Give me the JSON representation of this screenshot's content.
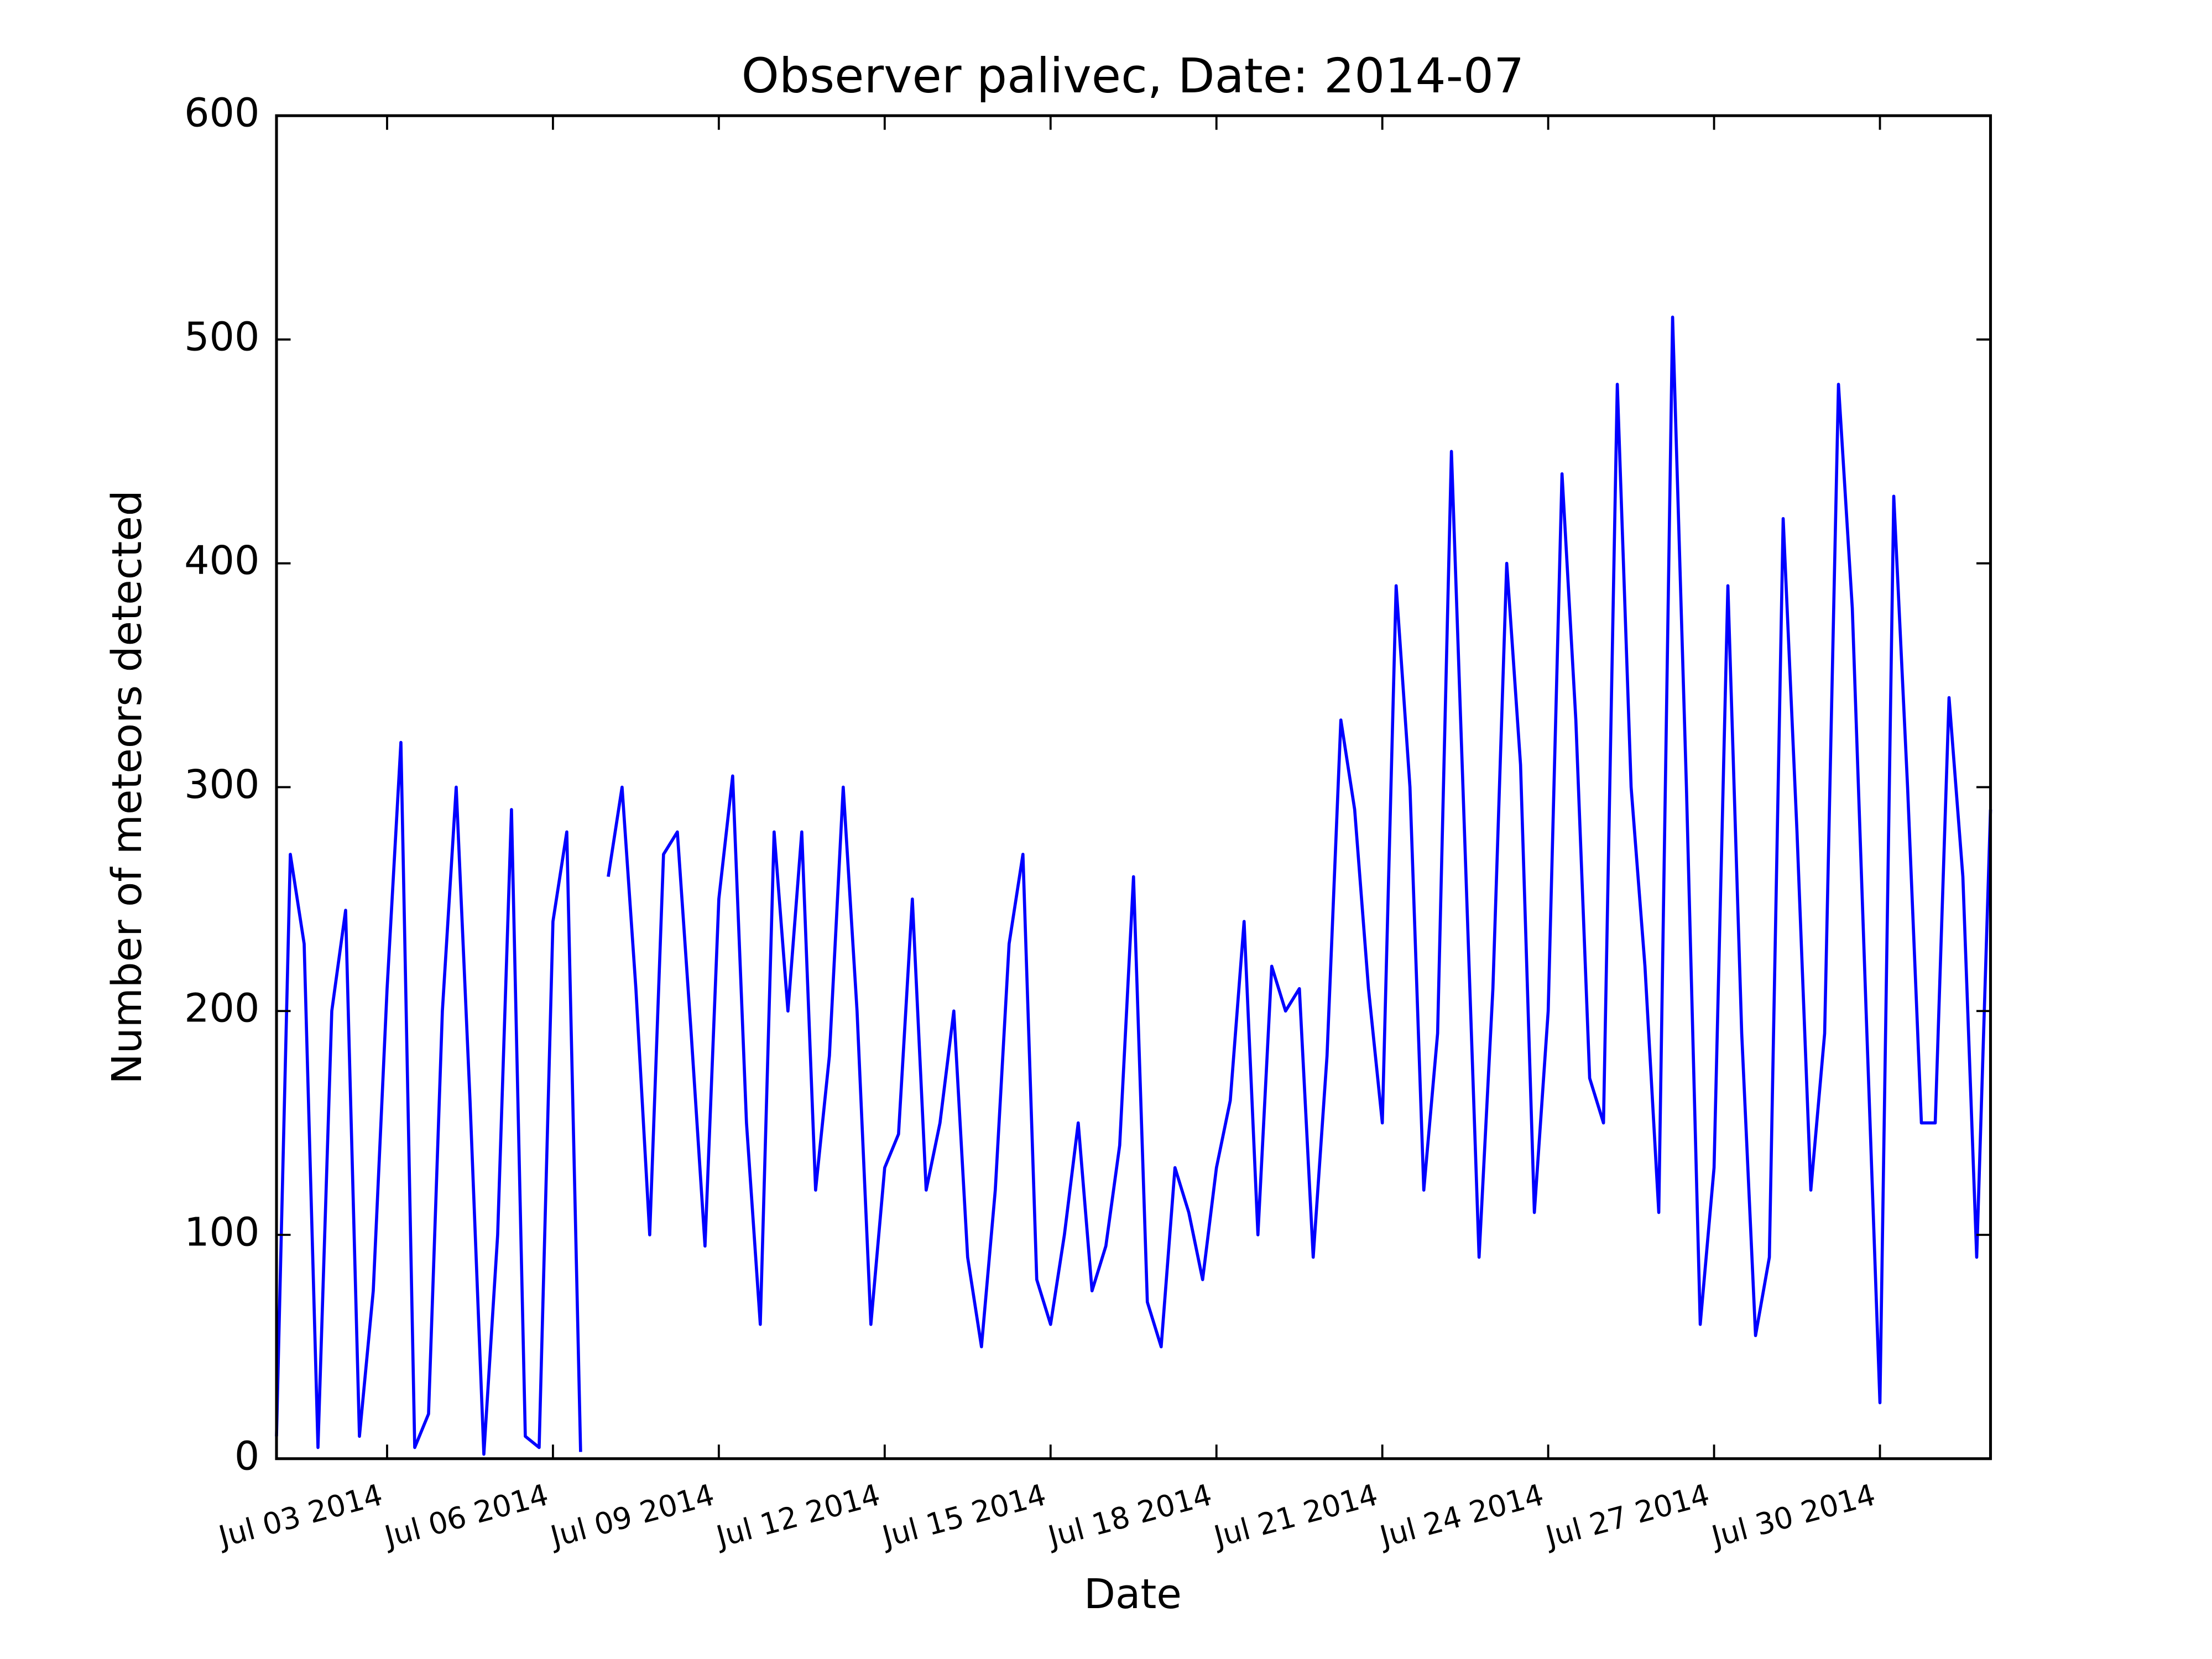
{
  "chart_data": {
    "type": "line",
    "title": "Observer palivec, Date: 2014-07",
    "xlabel": "Date",
    "ylabel": "Number of meteors detected",
    "color": "#0000ff",
    "xlim": [
      1,
      32
    ],
    "ylim": [
      0,
      600
    ],
    "yticks": [
      0,
      100,
      200,
      300,
      400,
      500,
      600
    ],
    "xticks": [
      {
        "value": 3,
        "label": "Jul 03 2014"
      },
      {
        "value": 6,
        "label": "Jul 06 2014"
      },
      {
        "value": 9,
        "label": "Jul 09 2014"
      },
      {
        "value": 12,
        "label": "Jul 12 2014"
      },
      {
        "value": 15,
        "label": "Jul 15 2014"
      },
      {
        "value": 18,
        "label": "Jul 18 2014"
      },
      {
        "value": 21,
        "label": "Jul 21 2014"
      },
      {
        "value": 24,
        "label": "Jul 24 2014"
      },
      {
        "value": 27,
        "label": "Jul 27 2014"
      },
      {
        "value": 30,
        "label": "Jul 30 2014"
      }
    ],
    "x": [
      1,
      1.25,
      1.5,
      1.75,
      2,
      2.25,
      2.5,
      2.75,
      3,
      3.25,
      3.5,
      3.75,
      4,
      4.25,
      4.5,
      4.75,
      5,
      5.25,
      5.5,
      5.75,
      6,
      6.25,
      6.5,
      6.75,
      7,
      7.25,
      7.5,
      7.75,
      8,
      8.25,
      8.5,
      8.75,
      9,
      9.25,
      9.5,
      9.75,
      10,
      10.25,
      10.5,
      10.75,
      11,
      11.25,
      11.5,
      11.75,
      12,
      12.25,
      12.5,
      12.75,
      13,
      13.25,
      13.5,
      13.75,
      14,
      14.25,
      14.5,
      14.75,
      15,
      15.25,
      15.5,
      15.75,
      16,
      16.25,
      16.5,
      16.75,
      17,
      17.25,
      17.5,
      17.75,
      18,
      18.25,
      18.5,
      18.75,
      19,
      19.25,
      19.5,
      19.75,
      20,
      20.25,
      20.5,
      20.75,
      21,
      21.25,
      21.5,
      21.75,
      22,
      22.25,
      22.5,
      22.75,
      23,
      23.25,
      23.5,
      23.75,
      24,
      24.25,
      24.5,
      24.75,
      25,
      25.25,
      25.5,
      25.75,
      26,
      26.25,
      26.5,
      26.75,
      27,
      27.25,
      27.5,
      27.75,
      28,
      28.25,
      28.5,
      28.75,
      29,
      29.25,
      29.5,
      29.75,
      30,
      30.25,
      30.5,
      30.75,
      31,
      31.25,
      31.5,
      31.75,
      32
    ],
    "values": [
      10,
      270,
      230,
      5,
      200,
      245,
      10,
      75,
      210,
      320,
      5,
      20,
      200,
      300,
      160,
      2,
      100,
      290,
      10,
      5,
      240,
      280,
      3,
      null,
      260,
      300,
      210,
      100,
      270,
      280,
      190,
      95,
      250,
      305,
      150,
      60,
      280,
      200,
      280,
      120,
      180,
      300,
      200,
      60,
      130,
      145,
      250,
      120,
      150,
      200,
      90,
      50,
      120,
      230,
      270,
      80,
      60,
      100,
      150,
      75,
      95,
      140,
      260,
      70,
      50,
      130,
      110,
      80,
      130,
      160,
      240,
      100,
      220,
      200,
      210,
      90,
      180,
      330,
      290,
      210,
      150,
      390,
      300,
      120,
      190,
      450,
      270,
      90,
      210,
      400,
      310,
      110,
      200,
      440,
      330,
      170,
      150,
      480,
      300,
      220,
      110,
      510,
      300,
      60,
      130,
      390,
      190,
      55,
      90,
      420,
      280,
      120,
      190,
      480,
      380,
      200,
      25,
      430,
      300,
      150,
      150,
      340,
      260,
      90,
      290
    ]
  }
}
